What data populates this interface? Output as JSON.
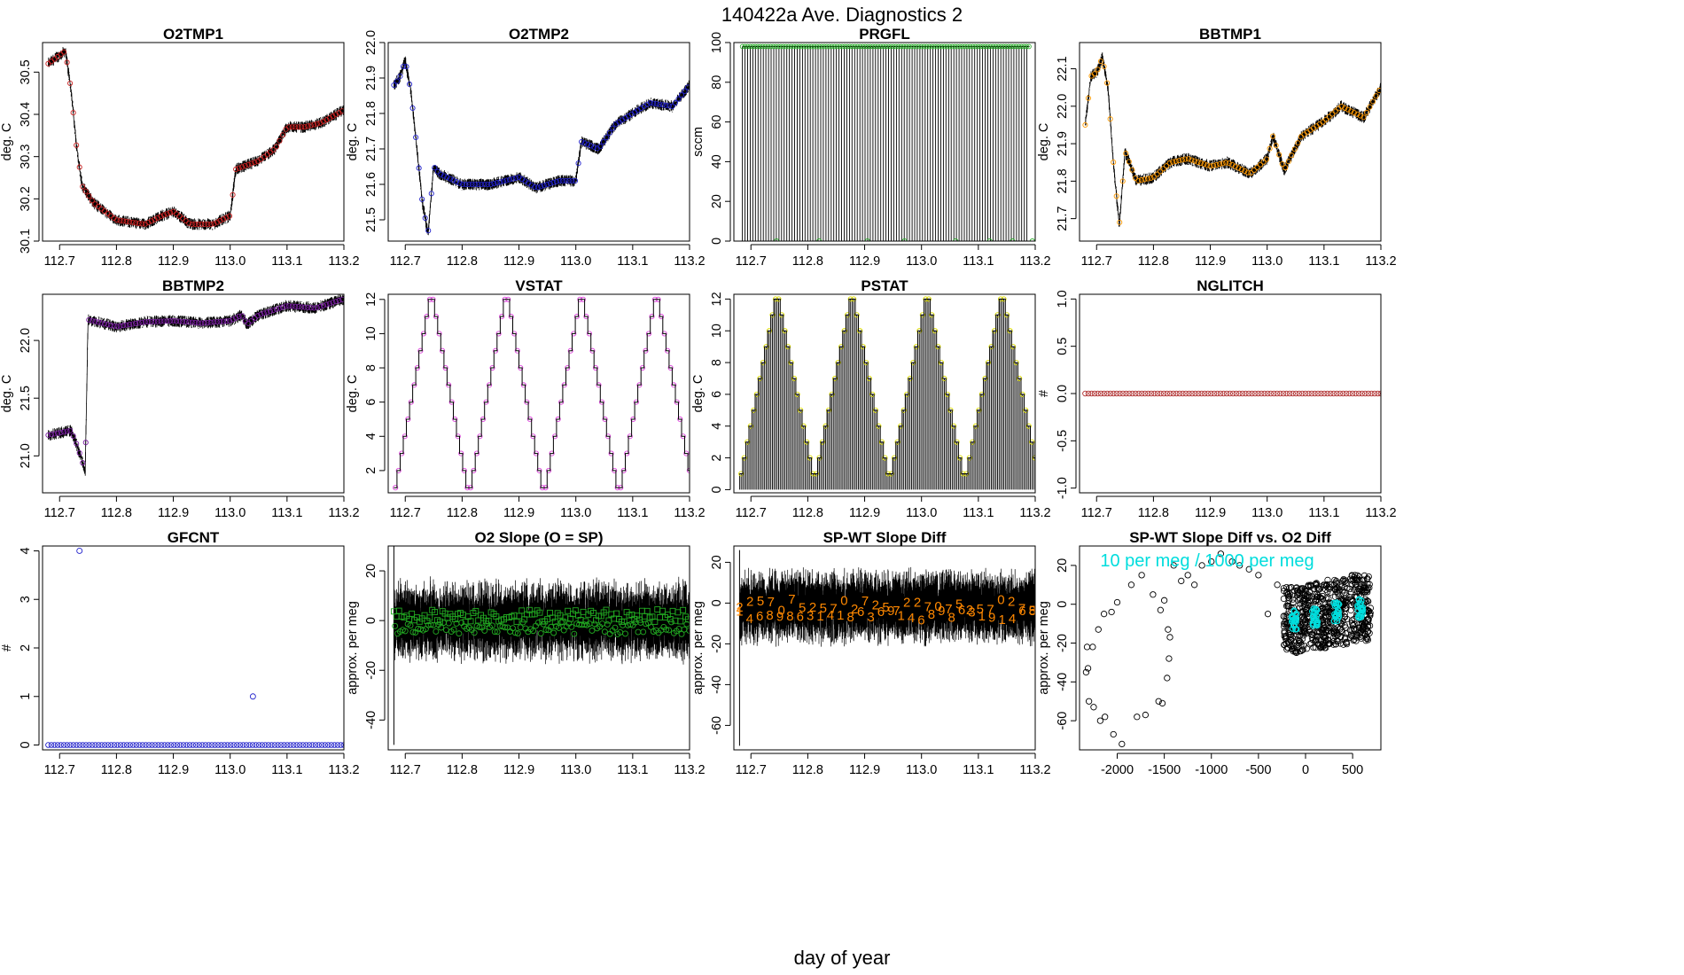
{
  "title": "140422a   Ave. Diagnostics 2",
  "xlabel": "day of year",
  "colors": {
    "red": "#cc2222",
    "blue": "#2222cc",
    "green": "#22aa22",
    "orange": "#ff9900",
    "purple": "#7a1fa2",
    "magenta": "#dd44dd",
    "yellow": "#dddd00",
    "brown": "#b03030",
    "cyan": "#00dddd",
    "darkorange": "#ff8800"
  },
  "chart_data": [
    {
      "id": "o2tmp1",
      "type": "line",
      "title": "O2TMP1",
      "ylabel": "deg. C",
      "xlim": [
        112.67,
        113.2
      ],
      "ylim": [
        30.1,
        30.57
      ],
      "yticks": [
        30.1,
        30.2,
        30.3,
        30.4,
        30.5
      ],
      "xticks": [
        112.7,
        112.8,
        112.9,
        113.0,
        113.1,
        113.2
      ],
      "xticklabels": [
        "112.7",
        "112.8",
        "112.9",
        "113.0",
        "113.1",
        "113.2"
      ],
      "marker_color": "red",
      "x": [
        112.68,
        112.7,
        112.71,
        112.72,
        112.73,
        112.74,
        112.76,
        112.8,
        112.85,
        112.88,
        112.9,
        112.93,
        112.97,
        113.0,
        113.01,
        113.05,
        113.08,
        113.1,
        113.13,
        113.16,
        113.2
      ],
      "y": [
        30.52,
        30.54,
        30.55,
        30.46,
        30.32,
        30.23,
        30.19,
        30.15,
        30.14,
        30.16,
        30.17,
        30.14,
        30.14,
        30.16,
        30.27,
        30.29,
        30.32,
        30.37,
        30.37,
        30.38,
        30.41
      ]
    },
    {
      "id": "o2tmp2",
      "type": "line",
      "title": "O2TMP2",
      "ylabel": "deg. C",
      "xlim": [
        112.67,
        113.2
      ],
      "ylim": [
        21.44,
        22.0
      ],
      "yticks": [
        21.5,
        21.6,
        21.7,
        21.8,
        21.9,
        22.0
      ],
      "xticks": [
        112.7,
        112.8,
        112.9,
        113.0,
        113.1,
        113.2
      ],
      "xticklabels": [
        "112.7",
        "112.8",
        "112.9",
        "113.0",
        "113.1",
        "113.2"
      ],
      "marker_color": "blue",
      "x": [
        112.68,
        112.69,
        112.7,
        112.71,
        112.72,
        112.73,
        112.74,
        112.75,
        112.76,
        112.8,
        112.85,
        112.9,
        112.93,
        112.97,
        113.0,
        113.01,
        113.04,
        113.07,
        113.1,
        113.13,
        113.17,
        113.2
      ],
      "y": [
        21.88,
        21.9,
        21.95,
        21.86,
        21.71,
        21.55,
        21.46,
        21.65,
        21.63,
        21.6,
        21.6,
        21.62,
        21.59,
        21.61,
        21.61,
        21.72,
        21.7,
        21.77,
        21.8,
        21.83,
        21.82,
        21.88
      ]
    },
    {
      "id": "prgfl",
      "type": "spike",
      "title": "PRGFL",
      "ylabel": "sccm",
      "xlim": [
        112.67,
        113.2
      ],
      "ylim": [
        0,
        100
      ],
      "yticks": [
        0,
        20,
        40,
        60,
        80,
        100
      ],
      "xticks": [
        112.7,
        112.8,
        112.9,
        113.0,
        113.1,
        113.2
      ],
      "xticklabels": [
        "112.7",
        "112.8",
        "112.9",
        "113.0",
        "113.1",
        "113.2"
      ],
      "marker_color": "green",
      "high": 98,
      "low": 0,
      "n_spikes": 110
    },
    {
      "id": "bbtmp1",
      "type": "line",
      "title": "BBTMP1",
      "ylabel": "deg. C",
      "xlim": [
        112.67,
        113.2
      ],
      "ylim": [
        21.64,
        22.17
      ],
      "yticks": [
        21.7,
        21.8,
        21.9,
        22.0,
        22.1
      ],
      "xticks": [
        112.7,
        112.8,
        112.9,
        113.0,
        113.1,
        113.2
      ],
      "xticklabels": [
        "112.7",
        "112.8",
        "112.9",
        "113.0",
        "113.1",
        "113.2"
      ],
      "marker_color": "orange",
      "x": [
        112.68,
        112.69,
        112.7,
        112.71,
        112.72,
        112.73,
        112.74,
        112.75,
        112.77,
        112.8,
        112.83,
        112.86,
        112.9,
        112.93,
        112.97,
        113.0,
        113.01,
        113.03,
        113.06,
        113.1,
        113.13,
        113.17,
        113.2
      ],
      "y": [
        21.95,
        22.08,
        22.09,
        22.13,
        22.05,
        21.84,
        21.68,
        21.88,
        21.8,
        21.81,
        21.85,
        21.86,
        21.84,
        21.85,
        21.82,
        21.86,
        21.92,
        21.83,
        21.92,
        21.96,
        22.0,
        21.97,
        22.05
      ]
    },
    {
      "id": "bbtmp2",
      "type": "line",
      "title": "BBTMP2",
      "ylabel": "deg. C",
      "xlim": [
        112.67,
        113.2
      ],
      "ylim": [
        20.68,
        22.4
      ],
      "yticks": [
        21.0,
        21.5,
        22.0
      ],
      "xticks": [
        112.7,
        112.8,
        112.9,
        113.0,
        113.1,
        113.2
      ],
      "xticklabels": [
        "112.7",
        "112.8",
        "112.9",
        "113.0",
        "113.1",
        "113.2"
      ],
      "marker_color": "purple",
      "x": [
        112.68,
        112.7,
        112.72,
        112.73,
        112.74,
        112.745,
        112.75,
        112.8,
        112.85,
        112.9,
        112.95,
        113.0,
        113.02,
        113.03,
        113.05,
        113.1,
        113.15,
        113.2
      ],
      "y": [
        21.18,
        21.2,
        21.22,
        21.1,
        20.95,
        20.85,
        22.18,
        22.12,
        22.16,
        22.17,
        22.15,
        22.17,
        22.22,
        22.14,
        22.22,
        22.3,
        22.28,
        22.36
      ]
    },
    {
      "id": "vstat",
      "type": "step",
      "title": "VSTAT",
      "ylabel": "deg. C",
      "xlim": [
        112.67,
        113.2
      ],
      "ylim": [
        0.7,
        12.3
      ],
      "yticks": [
        2,
        4,
        6,
        8,
        10,
        12
      ],
      "xticks": [
        112.7,
        112.8,
        112.9,
        113.0,
        113.1,
        113.2
      ],
      "xticklabels": [
        "112.7",
        "112.8",
        "112.9",
        "113.0",
        "113.1",
        "113.2"
      ],
      "marker_color": "magenta",
      "x0": 112.68,
      "step_width": 0.0055,
      "values": [
        1,
        2,
        3,
        4,
        5,
        6,
        7,
        8,
        9,
        10,
        11,
        12,
        12,
        11,
        10,
        9,
        8,
        7,
        6,
        5,
        4,
        3,
        2,
        1,
        1,
        2,
        3,
        4,
        5,
        6,
        7,
        8,
        9,
        10,
        11,
        12,
        12,
        11,
        10,
        9,
        8,
        7,
        6,
        5,
        4,
        3,
        2,
        1,
        1,
        2,
        3,
        4,
        5,
        6,
        7,
        8,
        9,
        10,
        11,
        12,
        12,
        11,
        10,
        9,
        8,
        7,
        6,
        5,
        4,
        3,
        2,
        1,
        1,
        2,
        3,
        4,
        5,
        6,
        7,
        8,
        9,
        10,
        11,
        12,
        12,
        11,
        10,
        9,
        8,
        7,
        6,
        5,
        4,
        3,
        2,
        1
      ]
    },
    {
      "id": "pstat",
      "type": "comb",
      "title": "PSTAT",
      "ylabel": "deg. C",
      "xlim": [
        112.67,
        113.2
      ],
      "ylim": [
        -0.2,
        12.3
      ],
      "yticks": [
        0,
        2,
        4,
        6,
        8,
        10,
        12
      ],
      "xticks": [
        112.7,
        112.8,
        112.9,
        113.0,
        113.1,
        113.2
      ],
      "xticklabels": [
        "112.7",
        "112.8",
        "112.9",
        "113.0",
        "113.1",
        "113.2"
      ],
      "marker_color": "yellow",
      "x0": 112.68,
      "step_width": 0.0055,
      "values": [
        1,
        2,
        3,
        4,
        5,
        6,
        7,
        8,
        9,
        10,
        11,
        12,
        12,
        11,
        10,
        9,
        8,
        7,
        6,
        5,
        4,
        3,
        2,
        1,
        1,
        2,
        3,
        4,
        5,
        6,
        7,
        8,
        9,
        10,
        11,
        12,
        12,
        11,
        10,
        9,
        8,
        7,
        6,
        5,
        4,
        3,
        2,
        1,
        1,
        2,
        3,
        4,
        5,
        6,
        7,
        8,
        9,
        10,
        11,
        12,
        12,
        11,
        10,
        9,
        8,
        7,
        6,
        5,
        4,
        3,
        2,
        1,
        1,
        2,
        3,
        4,
        5,
        6,
        7,
        8,
        9,
        10,
        11,
        12,
        12,
        11,
        10,
        9,
        8,
        7,
        6,
        5,
        4,
        3,
        2,
        1
      ]
    },
    {
      "id": "nglitch",
      "type": "scatter",
      "title": "NGLITCH",
      "ylabel": "#",
      "xlim": [
        112.67,
        113.2
      ],
      "ylim": [
        -1.05,
        1.05
      ],
      "yticks": [
        -1.0,
        -0.5,
        0.0,
        0.5,
        1.0
      ],
      "xticks": [
        112.7,
        112.8,
        112.9,
        113.0,
        113.1,
        113.2
      ],
      "xticklabels": [
        "112.7",
        "112.8",
        "112.9",
        "113.0",
        "113.1",
        "113.2"
      ],
      "marker_color": "brown",
      "x_start": 112.68,
      "x_end": 113.2,
      "n": 95,
      "value": 0
    },
    {
      "id": "gfcnt",
      "type": "scatter",
      "title": "GFCNT",
      "ylabel": "#",
      "xlim": [
        112.67,
        113.2
      ],
      "ylim": [
        -0.1,
        4.1
      ],
      "yticks": [
        0,
        1,
        2,
        3,
        4
      ],
      "xticks": [
        112.7,
        112.8,
        112.9,
        113.0,
        113.1,
        113.2
      ],
      "xticklabels": [
        "112.7",
        "112.8",
        "112.9",
        "113.0",
        "113.1",
        "113.2"
      ],
      "marker_color": "blue",
      "x_start": 112.68,
      "x_end": 113.2,
      "n": 95,
      "value": 0,
      "exceptions": [
        {
          "x": 112.735,
          "y": 4
        },
        {
          "x": 113.04,
          "y": 1
        }
      ]
    },
    {
      "id": "o2slope",
      "type": "noise",
      "title": "O2 Slope (O = SP)",
      "ylabel": "approx. per meg",
      "xlim": [
        112.67,
        113.2
      ],
      "ylim": [
        -52,
        30
      ],
      "yticks": [
        -40,
        -20,
        0,
        20
      ],
      "xticks": [
        112.7,
        112.8,
        112.9,
        113.0,
        113.1,
        113.2
      ],
      "xticklabels": [
        "112.7",
        "112.8",
        "112.9",
        "113.0",
        "113.1",
        "113.2"
      ],
      "marker_color": "green",
      "band": [
        -8,
        8
      ],
      "spike": {
        "x": 112.68,
        "ymin": -50,
        "ymax": 35
      }
    },
    {
      "id": "spwt",
      "type": "noise",
      "title": "SP-WT Slope Diff",
      "ylabel": "approx. per meg",
      "xlim": [
        112.67,
        113.2
      ],
      "ylim": [
        -72,
        28
      ],
      "yticks": [
        -60,
        -40,
        -20,
        0,
        20
      ],
      "xticks": [
        112.7,
        112.8,
        112.9,
        113.0,
        113.1,
        113.2
      ],
      "xticklabels": [
        "112.7",
        "112.8",
        "112.9",
        "113.0",
        "113.1",
        "113.2"
      ],
      "marker_color": "darkorange",
      "band": [
        -12,
        8
      ],
      "spike": {
        "x": 112.68,
        "ymin": -70,
        "ymax": 26
      },
      "digits_upper": "22570752570272572270752570275",
      "digits_lower": "146898631418636914689863191468"
    },
    {
      "id": "scatterdiff",
      "type": "scatter",
      "title": "SP-WT Slope Diff vs. O2 Diff",
      "ylabel": "approx. per meg",
      "xlim": [
        -2400,
        800
      ],
      "ylim": [
        -75,
        30
      ],
      "yticks": [
        -60,
        -40,
        -20,
        0,
        20
      ],
      "xticks": [
        -2000,
        -1500,
        -1000,
        -500,
        0,
        500
      ],
      "xticklabels": [
        "-2000",
        "-1500",
        "-1000",
        "-500",
        "0",
        "500"
      ],
      "marker_color": "cyan",
      "annotation": "10 per meg / 1000 per meg",
      "points": [
        [
          -2330,
          -35
        ],
        [
          -2320,
          -22
        ],
        [
          -2310,
          -33
        ],
        [
          -2300,
          -50
        ],
        [
          -2260,
          -22
        ],
        [
          -2250,
          -53
        ],
        [
          -2200,
          -13
        ],
        [
          -2180,
          -60
        ],
        [
          -2140,
          -5
        ],
        [
          -2130,
          -58
        ],
        [
          -2060,
          -4
        ],
        [
          -2040,
          -67
        ],
        [
          -2000,
          1
        ],
        [
          -1950,
          -72
        ],
        [
          -1850,
          10
        ],
        [
          -1790,
          -58
        ],
        [
          -1740,
          15
        ],
        [
          -1700,
          -57
        ],
        [
          -1620,
          5
        ],
        [
          -1560,
          -50
        ],
        [
          -1540,
          -3
        ],
        [
          -1520,
          -51
        ],
        [
          -1500,
          2
        ],
        [
          -1470,
          -38
        ],
        [
          -1460,
          -13
        ],
        [
          -1450,
          -28
        ],
        [
          -1440,
          -17
        ],
        [
          -1400,
          20
        ],
        [
          -1320,
          12
        ],
        [
          -1250,
          15
        ],
        [
          -1180,
          10
        ],
        [
          -1100,
          20
        ],
        [
          -1000,
          22
        ],
        [
          -900,
          26
        ],
        [
          -780,
          22
        ],
        [
          -700,
          20
        ],
        [
          -600,
          18
        ],
        [
          -500,
          15
        ],
        [
          -400,
          -5
        ],
        [
          -300,
          10
        ]
      ],
      "clusters": [
        {
          "x": -120,
          "y": -8
        },
        {
          "x": 100,
          "y": -6
        },
        {
          "x": 330,
          "y": -4
        },
        {
          "x": 580,
          "y": -2
        }
      ]
    }
  ]
}
